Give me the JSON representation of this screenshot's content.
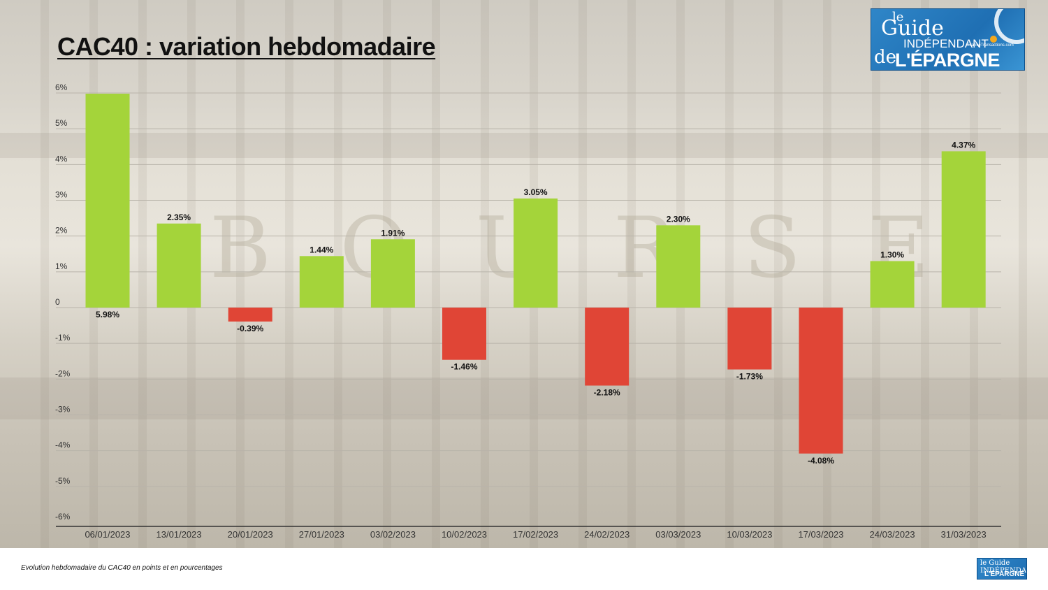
{
  "header": {
    "title": "CAC40 : variation hebdomadaire"
  },
  "logo": {
    "line1": "le",
    "line2": "Guide",
    "line3": "INDÉPENDANT",
    "line4": "de",
    "line5": "L'ÉPARGNE",
    "site": "FranceTransactions.com"
  },
  "background": {
    "word": "BOURSE"
  },
  "footer": {
    "note": "Evolution hebdomadaire du CAC40 en points et en pourcentages",
    "logo_small_line1": "le Guide INDÉPENDANT",
    "logo_small_line2": "L'ÉPARGNE"
  },
  "colors": {
    "positive": "#a4d43a",
    "negative": "#e04536",
    "gridline": "#b9b4aa",
    "axis": "#333333"
  },
  "chart_data": {
    "type": "bar",
    "title": "CAC40 : variation hebdomadaire",
    "xlabel": "",
    "ylabel": "",
    "ylim": [
      -6,
      6
    ],
    "yticks": [
      "6%",
      "5%",
      "4%",
      "3%",
      "2%",
      "1%",
      "0",
      "-1%",
      "-2%",
      "-3%",
      "-4%",
      "-5%",
      "-6%"
    ],
    "categories": [
      "06/01/2023",
      "13/01/2023",
      "20/01/2023",
      "27/01/2023",
      "03/02/2023",
      "10/02/2023",
      "17/02/2023",
      "24/02/2023",
      "03/03/2023",
      "10/03/2023",
      "17/03/2023",
      "24/03/2023",
      "31/03/2023"
    ],
    "values": [
      5.98,
      2.35,
      -0.39,
      1.44,
      1.91,
      -1.46,
      3.05,
      -2.18,
      2.3,
      -1.73,
      -4.08,
      1.3,
      4.37
    ],
    "labels": [
      "5.98%",
      "2.35%",
      "-0.39%",
      "1.44%",
      "1.91%",
      "-1.46%",
      "3.05%",
      "-2.18%",
      "2.30%",
      "-1.73%",
      "-4.08%",
      "1.30%",
      "4.37%"
    ],
    "grid": true,
    "legend": "none"
  }
}
